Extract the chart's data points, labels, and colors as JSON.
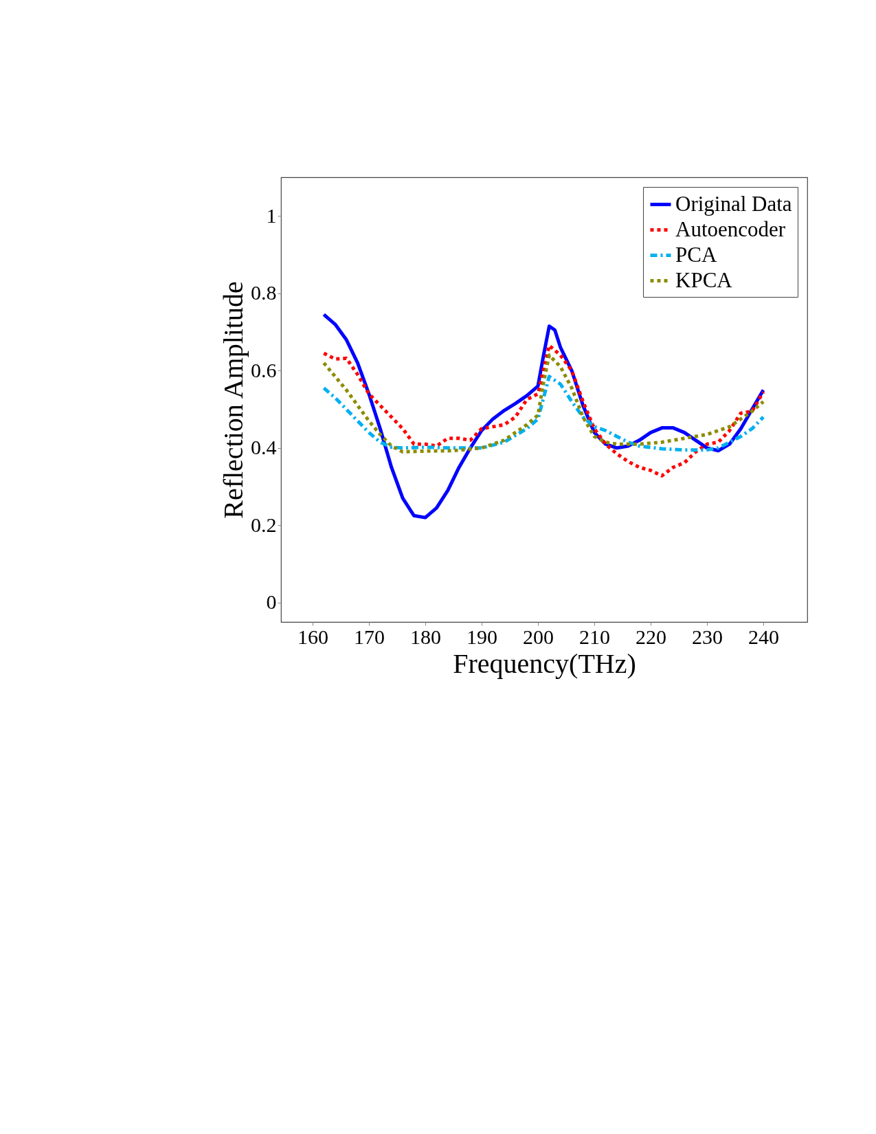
{
  "chart_data": {
    "type": "line",
    "xlabel": "Frequency(THz)",
    "ylabel": "Reflection Amplitude",
    "xlim": [
      154.4,
      247.8
    ],
    "ylim": [
      -0.05,
      1.1
    ],
    "xticks": [
      160,
      170,
      180,
      190,
      200,
      210,
      220,
      230,
      240
    ],
    "yticks": [
      0,
      0.2,
      0.4,
      0.6,
      0.8,
      1
    ],
    "grid": false,
    "legend": "top right",
    "marker": "none",
    "series": [
      {
        "name": "Original Data",
        "color": "#0000ff",
        "line_style": "solid",
        "x": [
          162,
          164,
          166,
          168,
          170,
          172,
          174,
          176,
          178,
          180,
          182,
          184,
          186,
          188,
          190,
          192,
          194,
          196,
          198,
          200,
          201,
          202,
          203,
          204,
          206,
          208,
          210,
          212,
          214,
          216,
          218,
          220,
          222,
          224,
          226,
          228,
          230,
          232,
          234,
          236,
          238,
          240
        ],
        "values": [
          0.745,
          0.72,
          0.68,
          0.62,
          0.54,
          0.45,
          0.35,
          0.27,
          0.225,
          0.22,
          0.245,
          0.29,
          0.35,
          0.4,
          0.445,
          0.475,
          0.497,
          0.515,
          0.535,
          0.56,
          0.64,
          0.715,
          0.705,
          0.66,
          0.6,
          0.51,
          0.44,
          0.41,
          0.4,
          0.405,
          0.42,
          0.44,
          0.452,
          0.452,
          0.44,
          0.42,
          0.4,
          0.393,
          0.41,
          0.45,
          0.5,
          0.55
        ]
      },
      {
        "name": "Autoencoder",
        "color": "#ff0000",
        "line_style": "dotted",
        "x": [
          162,
          164,
          166,
          168,
          170,
          172,
          174,
          176,
          178,
          180,
          182,
          184,
          186,
          188,
          190,
          192,
          194,
          196,
          198,
          200,
          202,
          204,
          206,
          208,
          210,
          212,
          214,
          216,
          218,
          220,
          222,
          224,
          226,
          228,
          230,
          232,
          234,
          236,
          238,
          240
        ],
        "values": [
          0.645,
          0.63,
          0.632,
          0.59,
          0.54,
          0.51,
          0.48,
          0.45,
          0.41,
          0.41,
          0.405,
          0.425,
          0.425,
          0.42,
          0.45,
          0.455,
          0.46,
          0.48,
          0.525,
          0.54,
          0.665,
          0.64,
          0.6,
          0.52,
          0.45,
          0.41,
          0.385,
          0.365,
          0.35,
          0.342,
          0.328,
          0.35,
          0.362,
          0.39,
          0.41,
          0.415,
          0.445,
          0.49,
          0.495,
          0.545
        ]
      },
      {
        "name": "PCA",
        "color": "#00b0f0",
        "line_style": "dashdot",
        "x": [
          162,
          164,
          166,
          168,
          170,
          172,
          174,
          176,
          180,
          185,
          190,
          194,
          198,
          200,
          201,
          202,
          204,
          206,
          208,
          210,
          212,
          214,
          216,
          218,
          222,
          226,
          230,
          232,
          234,
          236,
          238,
          240
        ],
        "values": [
          0.555,
          0.53,
          0.5,
          0.47,
          0.44,
          0.415,
          0.402,
          0.4,
          0.402,
          0.4,
          0.4,
          0.415,
          0.45,
          0.475,
          0.53,
          0.585,
          0.565,
          0.52,
          0.48,
          0.455,
          0.445,
          0.43,
          0.415,
          0.405,
          0.398,
          0.395,
          0.395,
          0.4,
          0.415,
          0.43,
          0.45,
          0.48
        ]
      },
      {
        "name": "KPCA",
        "color": "#8c8c00",
        "line_style": "dotted",
        "x": [
          162,
          164,
          166,
          168,
          170,
          172,
          174,
          176,
          180,
          185,
          190,
          194,
          198,
          200,
          201,
          202,
          204,
          206,
          208,
          210,
          212,
          214,
          218,
          222,
          226,
          230,
          234,
          236,
          238,
          240
        ],
        "values": [
          0.62,
          0.585,
          0.55,
          0.51,
          0.47,
          0.435,
          0.405,
          0.39,
          0.392,
          0.393,
          0.4,
          0.42,
          0.46,
          0.485,
          0.57,
          0.64,
          0.61,
          0.555,
          0.48,
          0.43,
          0.415,
          0.41,
          0.41,
          0.415,
          0.425,
          0.435,
          0.455,
          0.475,
          0.495,
          0.52
        ]
      }
    ]
  }
}
